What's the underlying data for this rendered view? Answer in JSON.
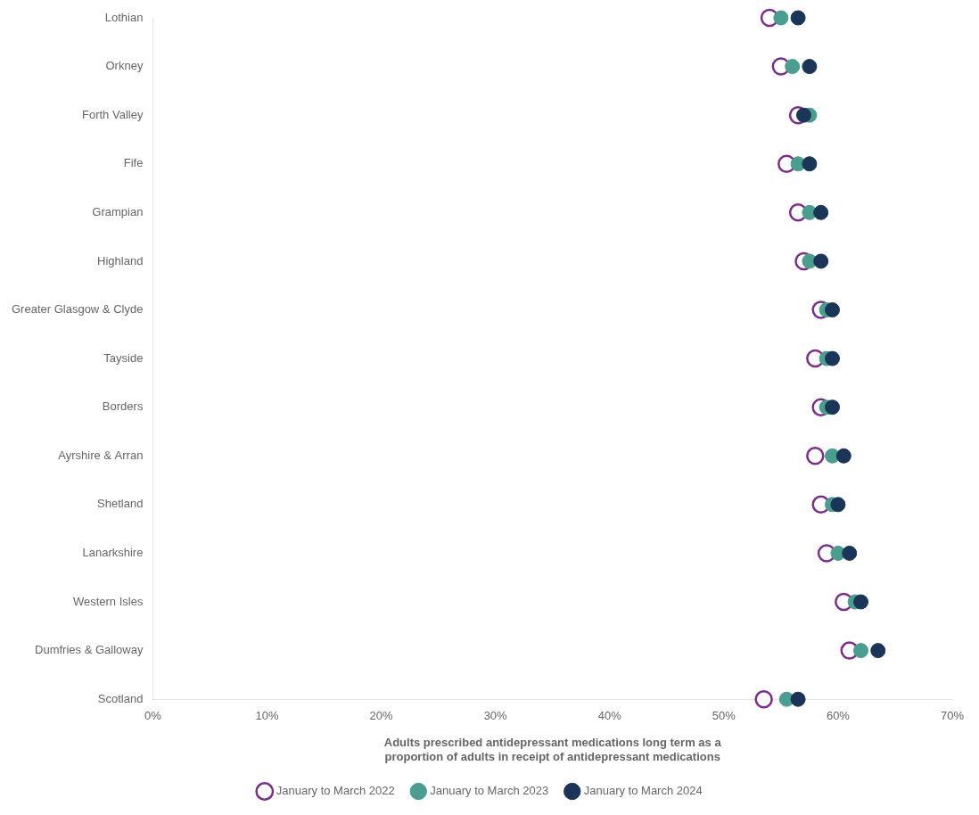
{
  "chart_data": {
    "type": "scatter",
    "orientation": "horizontal",
    "categories": [
      "Lothian",
      "Orkney",
      "Forth Valley",
      "Fife",
      "Grampian",
      "Highland",
      "Greater Glasgow & Clyde",
      "Tayside",
      "Borders",
      "Ayrshire & Arran",
      "Shetland",
      "Lanarkshire",
      "Western Isles",
      "Dumfries & Galloway",
      "Scotland"
    ],
    "series": [
      {
        "name": "January to March 2022",
        "color": "#7B2D8B",
        "marker": "hollow_circle",
        "values": [
          54.0,
          55.0,
          56.5,
          55.5,
          56.5,
          57.0,
          58.5,
          58.0,
          58.5,
          58.0,
          58.5,
          59.0,
          60.5,
          61.0,
          53.5
        ]
      },
      {
        "name": "January to March 2023",
        "color": "#4A9E8F",
        "marker": "circle",
        "values": [
          55.0,
          56.0,
          57.5,
          56.5,
          57.5,
          57.5,
          59.0,
          59.0,
          59.0,
          59.5,
          59.5,
          60.0,
          61.5,
          62.0,
          55.5
        ]
      },
      {
        "name": "January to March 2024",
        "color": "#1A3557",
        "marker": "circle",
        "values": [
          56.5,
          57.5,
          57.0,
          57.5,
          58.5,
          58.5,
          59.5,
          59.5,
          59.5,
          60.5,
          60.0,
          61.0,
          62.0,
          63.5,
          56.5
        ]
      }
    ],
    "xlabel": "Adults prescribed antidepressant medications long term as a\nproportion of adults in receipt of antidepressant medications",
    "xlim": [
      0,
      70
    ],
    "xticks": [
      {
        "value": 0,
        "label": "0%"
      },
      {
        "value": 10,
        "label": "10%"
      },
      {
        "value": 20,
        "label": "20%"
      },
      {
        "value": 30,
        "label": "30%"
      },
      {
        "value": 40,
        "label": "40%"
      },
      {
        "value": 50,
        "label": "50%"
      },
      {
        "value": 60,
        "label": "60%"
      },
      {
        "value": 70,
        "label": "70%"
      }
    ],
    "grid": false,
    "legend": "bottom"
  }
}
